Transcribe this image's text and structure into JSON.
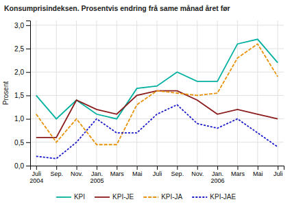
{
  "chart_data": {
    "type": "line",
    "title": "Konsumprisindeksen. Prosentvis endring frå same månad året før",
    "y_label": "Prosent",
    "categories": [
      "Juli\n2004",
      "Sep.",
      "Nov.",
      "Jan.\n2005",
      "Mars",
      "Mai",
      "Juli",
      "Sep.",
      "Nov.",
      "Jan.\n2006",
      "Mars",
      "Mai",
      "Juli"
    ],
    "series": [
      {
        "name": "KPI",
        "color": "#00b0a0",
        "line_style": "solid",
        "values": [
          1.5,
          1.0,
          1.4,
          1.1,
          1.0,
          1.65,
          1.7,
          2.0,
          1.8,
          1.8,
          2.6,
          2.7,
          2.2
        ]
      },
      {
        "name": "KPI-JE",
        "color": "#8b1a1a",
        "line_style": "solid",
        "values": [
          0.6,
          0.6,
          1.4,
          1.2,
          1.1,
          1.5,
          1.6,
          1.6,
          1.4,
          1.1,
          1.2,
          1.1,
          1.0
        ]
      },
      {
        "name": "KPI-JA",
        "color": "#e8920a",
        "line_style": "dashed",
        "values": [
          1.1,
          0.5,
          1.0,
          0.45,
          0.45,
          1.3,
          1.6,
          1.55,
          1.5,
          1.55,
          2.3,
          2.6,
          1.9
        ]
      },
      {
        "name": "KPI-JAE",
        "color": "#1a1acd",
        "line_style": "dotted",
        "values": [
          0.2,
          0.15,
          0.5,
          1.0,
          0.7,
          0.7,
          1.1,
          1.3,
          0.9,
          0.8,
          1.0,
          0.7,
          0.4
        ]
      }
    ],
    "ylim": [
      0.0,
      3.1
    ],
    "yticks": [
      {
        "value": 0.0,
        "label": "0,0"
      },
      {
        "value": 0.5,
        "label": "0,5"
      },
      {
        "value": 1.0,
        "label": "1,0"
      },
      {
        "value": 1.5,
        "label": "1,5"
      },
      {
        "value": 2.0,
        "label": "2,0"
      },
      {
        "value": 2.5,
        "label": "2,5"
      },
      {
        "value": 3.0,
        "label": "3,0"
      }
    ],
    "grid": true,
    "legend": "bottom"
  }
}
